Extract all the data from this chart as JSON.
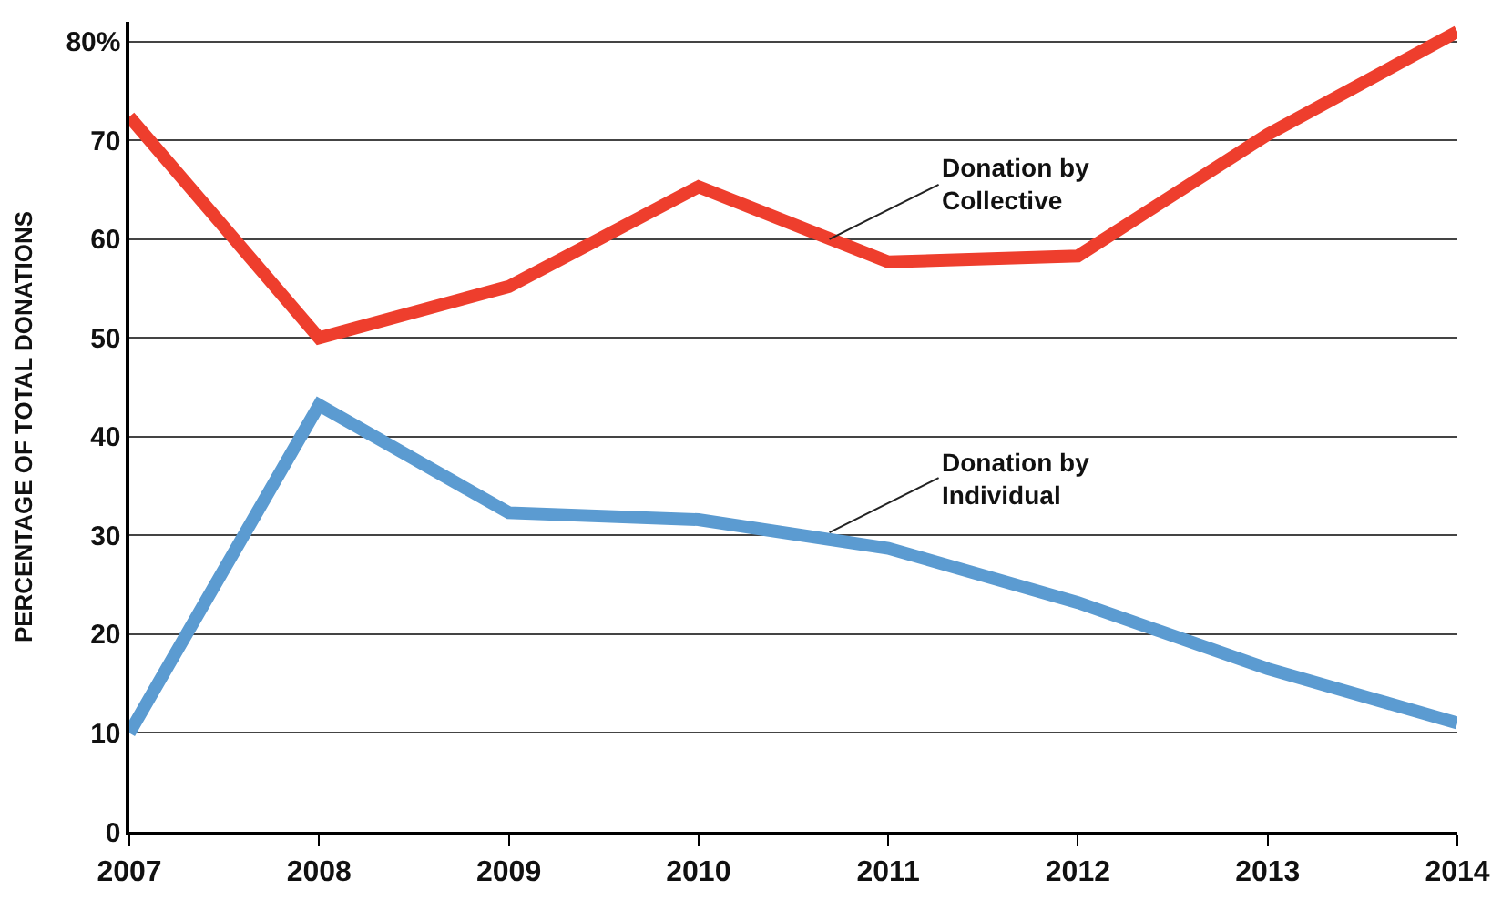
{
  "chart_data": {
    "type": "line",
    "ylabel": "PERCENTAGE OF TOTAL DONATIONS",
    "x": [
      2007,
      2008,
      2009,
      2010,
      2011,
      2012,
      2013,
      2014
    ],
    "series": [
      {
        "color": "#ee3e2d",
        "values": [
          72.4,
          50,
          55.2,
          65.3,
          57.7,
          58.3,
          70.6,
          81
        ]
      },
      {
        "color": "#5b9bd1",
        "values": [
          10,
          43.2,
          32.3,
          31.6,
          28.7,
          23.2,
          16.5,
          11
        ]
      }
    ],
    "xlim": [
      2007,
      2014
    ],
    "xticks": [
      2007,
      2008,
      2009,
      2010,
      2011,
      2012,
      2013,
      2014
    ],
    "ylim": [
      0,
      82
    ],
    "yticks": [
      0,
      10,
      20,
      30,
      40,
      50,
      60,
      70,
      {
        "value": 80,
        "label": "80%"
      }
    ],
    "grid": "y",
    "marker": "none",
    "line_style": "solid",
    "annotations": [
      {
        "text": "Donation by\nCollective",
        "x": 2010.69,
        "y": 60
      },
      {
        "text": "Donation by\nIndividual",
        "x": 2010.69,
        "y": 30.3
      }
    ]
  }
}
